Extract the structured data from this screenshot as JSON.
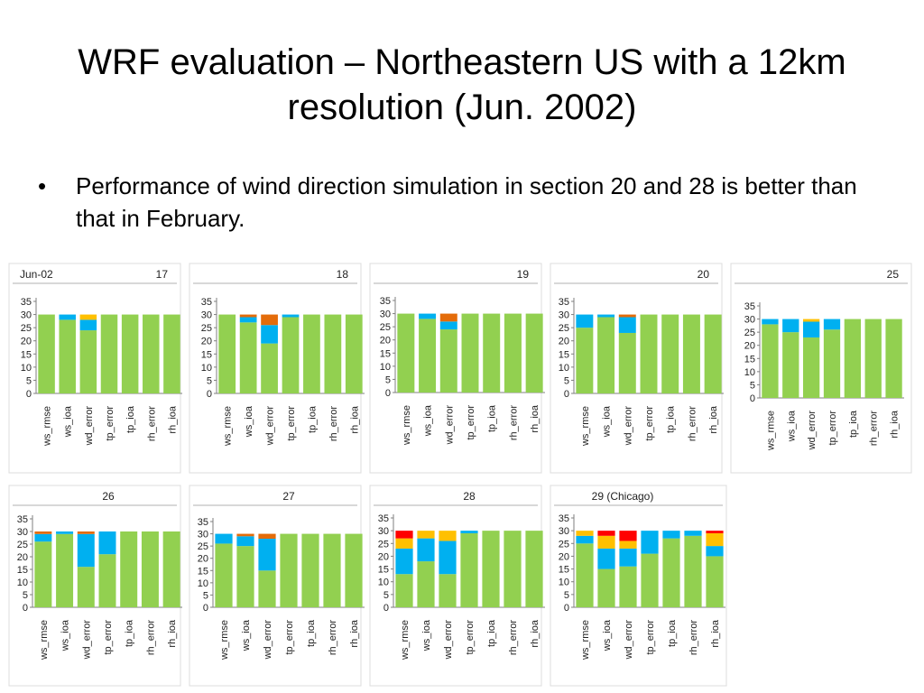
{
  "slide": {
    "title": "WRF evaluation – Northeastern US with a 12km resolution (Jun. 2002)",
    "bullets": [
      "Performance of wind direction simulation in section 20 and 28 is  better than that in February."
    ],
    "bullet_symbol": "•"
  },
  "colors": {
    "green": "#92d050",
    "blue": "#00b0f0",
    "orange": "#e46c0a",
    "yellow": "#ffc000",
    "red": "#ff0000"
  },
  "chart_data": [
    {
      "type": "bar",
      "stacked": true,
      "title": "17",
      "corner_label": "Jun-02",
      "categories": [
        "ws_rmse",
        "ws_ioa",
        "wd_error",
        "tp_error",
        "tp_ioa",
        "rh_error",
        "rh_ioa"
      ],
      "ylim": [
        0,
        35
      ],
      "yticks": [
        0,
        5,
        10,
        15,
        20,
        25,
        30,
        35
      ],
      "grid": false,
      "legend": "none",
      "series": [
        {
          "color": "green",
          "values": [
            30,
            28,
            24,
            30,
            30,
            30,
            30
          ]
        },
        {
          "color": "blue",
          "values": [
            0,
            2,
            4,
            0,
            0,
            0,
            0
          ]
        },
        {
          "color": "yellow",
          "values": [
            0,
            0,
            2,
            0,
            0,
            0,
            0
          ]
        }
      ]
    },
    {
      "type": "bar",
      "stacked": true,
      "title": "18",
      "categories": [
        "ws_rmse",
        "ws_ioa",
        "wd_error",
        "tp_error",
        "tp_ioa",
        "rh_error",
        "rh_ioa"
      ],
      "ylim": [
        0,
        35
      ],
      "yticks": [
        0,
        5,
        10,
        15,
        20,
        25,
        30,
        35
      ],
      "grid": false,
      "legend": "none",
      "series": [
        {
          "color": "green",
          "values": [
            30,
            27,
            19,
            29,
            30,
            30,
            30
          ]
        },
        {
          "color": "blue",
          "values": [
            0,
            2,
            7,
            1,
            0,
            0,
            0
          ]
        },
        {
          "color": "orange",
          "values": [
            0,
            1,
            4,
            0,
            0,
            0,
            0
          ]
        }
      ]
    },
    {
      "type": "bar",
      "stacked": true,
      "title": "19",
      "categories": [
        "ws_rmse",
        "ws_ioa",
        "wd_error",
        "tp_error",
        "tp_ioa",
        "rh_error",
        "rh_ioa"
      ],
      "ylim": [
        0,
        35
      ],
      "yticks": [
        0,
        5,
        10,
        15,
        20,
        25,
        30,
        35
      ],
      "grid": false,
      "legend": "none",
      "series": [
        {
          "color": "green",
          "values": [
            30,
            28,
            24,
            30,
            30,
            30,
            30
          ]
        },
        {
          "color": "blue",
          "values": [
            0,
            2,
            3,
            0,
            0,
            0,
            0
          ]
        },
        {
          "color": "orange",
          "values": [
            0,
            0,
            3,
            0,
            0,
            0,
            0
          ]
        }
      ]
    },
    {
      "type": "bar",
      "stacked": true,
      "title": "20",
      "categories": [
        "ws_rmse",
        "ws_ioa",
        "wd_error",
        "tp_error",
        "tp_ioa",
        "rh_error",
        "rh_ioa"
      ],
      "ylim": [
        0,
        35
      ],
      "yticks": [
        0,
        5,
        10,
        15,
        20,
        25,
        30,
        35
      ],
      "grid": false,
      "legend": "none",
      "series": [
        {
          "color": "green",
          "values": [
            25,
            29,
            23,
            30,
            30,
            30,
            30
          ]
        },
        {
          "color": "blue",
          "values": [
            5,
            1,
            6,
            0,
            0,
            0,
            0
          ]
        },
        {
          "color": "orange",
          "values": [
            0,
            0,
            1,
            0,
            0,
            0,
            0
          ]
        }
      ]
    },
    {
      "type": "bar",
      "stacked": true,
      "title": "25",
      "categories": [
        "ws_rmse",
        "ws_ioa",
        "wd_error",
        "tp_error",
        "tp_ioa",
        "rh_error",
        "rh_ioa"
      ],
      "ylim": [
        0,
        35
      ],
      "yticks": [
        0,
        5,
        10,
        15,
        20,
        25,
        30,
        35
      ],
      "grid": false,
      "legend": "none",
      "series": [
        {
          "color": "green",
          "values": [
            28,
            25,
            23,
            26,
            30,
            30,
            30
          ]
        },
        {
          "color": "blue",
          "values": [
            2,
            5,
            6,
            4,
            0,
            0,
            0
          ]
        },
        {
          "color": "yellow",
          "values": [
            0,
            0,
            1,
            0,
            0,
            0,
            0
          ]
        }
      ]
    },
    {
      "type": "bar",
      "stacked": true,
      "title": "26",
      "categories": [
        "ws_rmse",
        "ws_ioa",
        "wd_error",
        "tp_error",
        "tp_ioa",
        "rh_error",
        "rh_ioa"
      ],
      "ylim": [
        0,
        35
      ],
      "yticks": [
        0,
        5,
        10,
        15,
        20,
        25,
        30,
        35
      ],
      "grid": false,
      "legend": "none",
      "series": [
        {
          "color": "green",
          "values": [
            26,
            29,
            16,
            21,
            30,
            30,
            30
          ]
        },
        {
          "color": "blue",
          "values": [
            3,
            1,
            13,
            9,
            0,
            0,
            0
          ]
        },
        {
          "color": "orange",
          "values": [
            1,
            0,
            1,
            0,
            0,
            0,
            0
          ]
        }
      ]
    },
    {
      "type": "bar",
      "stacked": true,
      "title": "27",
      "categories": [
        "ws_rmse",
        "ws_ioa",
        "wd_error",
        "tp_error",
        "tp_ioa",
        "rh_error",
        "rh_ioa"
      ],
      "ylim": [
        0,
        35
      ],
      "yticks": [
        0,
        5,
        10,
        15,
        20,
        25,
        30,
        35
      ],
      "grid": false,
      "legend": "none",
      "series": [
        {
          "color": "green",
          "values": [
            26,
            25,
            15,
            30,
            30,
            30,
            30
          ]
        },
        {
          "color": "blue",
          "values": [
            4,
            4,
            13,
            0,
            0,
            0,
            0
          ]
        },
        {
          "color": "orange",
          "values": [
            0,
            1,
            2,
            0,
            0,
            0,
            0
          ]
        }
      ]
    },
    {
      "type": "bar",
      "stacked": true,
      "title": "28",
      "categories": [
        "ws_rmse",
        "ws_ioa",
        "wd_error",
        "tp_error",
        "tp_ioa",
        "rh_error",
        "rh_ioa"
      ],
      "ylim": [
        0,
        35
      ],
      "yticks": [
        0,
        5,
        10,
        15,
        20,
        25,
        30,
        35
      ],
      "grid": false,
      "legend": "none",
      "series": [
        {
          "color": "green",
          "values": [
            13,
            18,
            13,
            29,
            30,
            30,
            30
          ]
        },
        {
          "color": "blue",
          "values": [
            10,
            9,
            13,
            1,
            0,
            0,
            0
          ]
        },
        {
          "color": "yellow",
          "values": [
            4,
            3,
            4,
            0,
            0,
            0,
            0
          ]
        },
        {
          "color": "red",
          "values": [
            3,
            0,
            0,
            0,
            0,
            0,
            0
          ]
        }
      ]
    },
    {
      "type": "bar",
      "stacked": true,
      "title": "29 (Chicago)",
      "categories": [
        "ws_rmse",
        "ws_ioa",
        "wd_error",
        "tp_error",
        "tp_ioa",
        "rh_error",
        "rh_ioa"
      ],
      "ylim": [
        0,
        35
      ],
      "yticks": [
        0,
        5,
        10,
        15,
        20,
        25,
        30,
        35
      ],
      "grid": false,
      "legend": "none",
      "series": [
        {
          "color": "green",
          "values": [
            25,
            15,
            16,
            21,
            27,
            28,
            20
          ]
        },
        {
          "color": "blue",
          "values": [
            3,
            8,
            7,
            9,
            3,
            2,
            4
          ]
        },
        {
          "color": "yellow",
          "values": [
            2,
            5,
            3,
            0,
            0,
            0,
            5
          ]
        },
        {
          "color": "red",
          "values": [
            0,
            2,
            4,
            0,
            0,
            0,
            1
          ]
        }
      ]
    }
  ]
}
